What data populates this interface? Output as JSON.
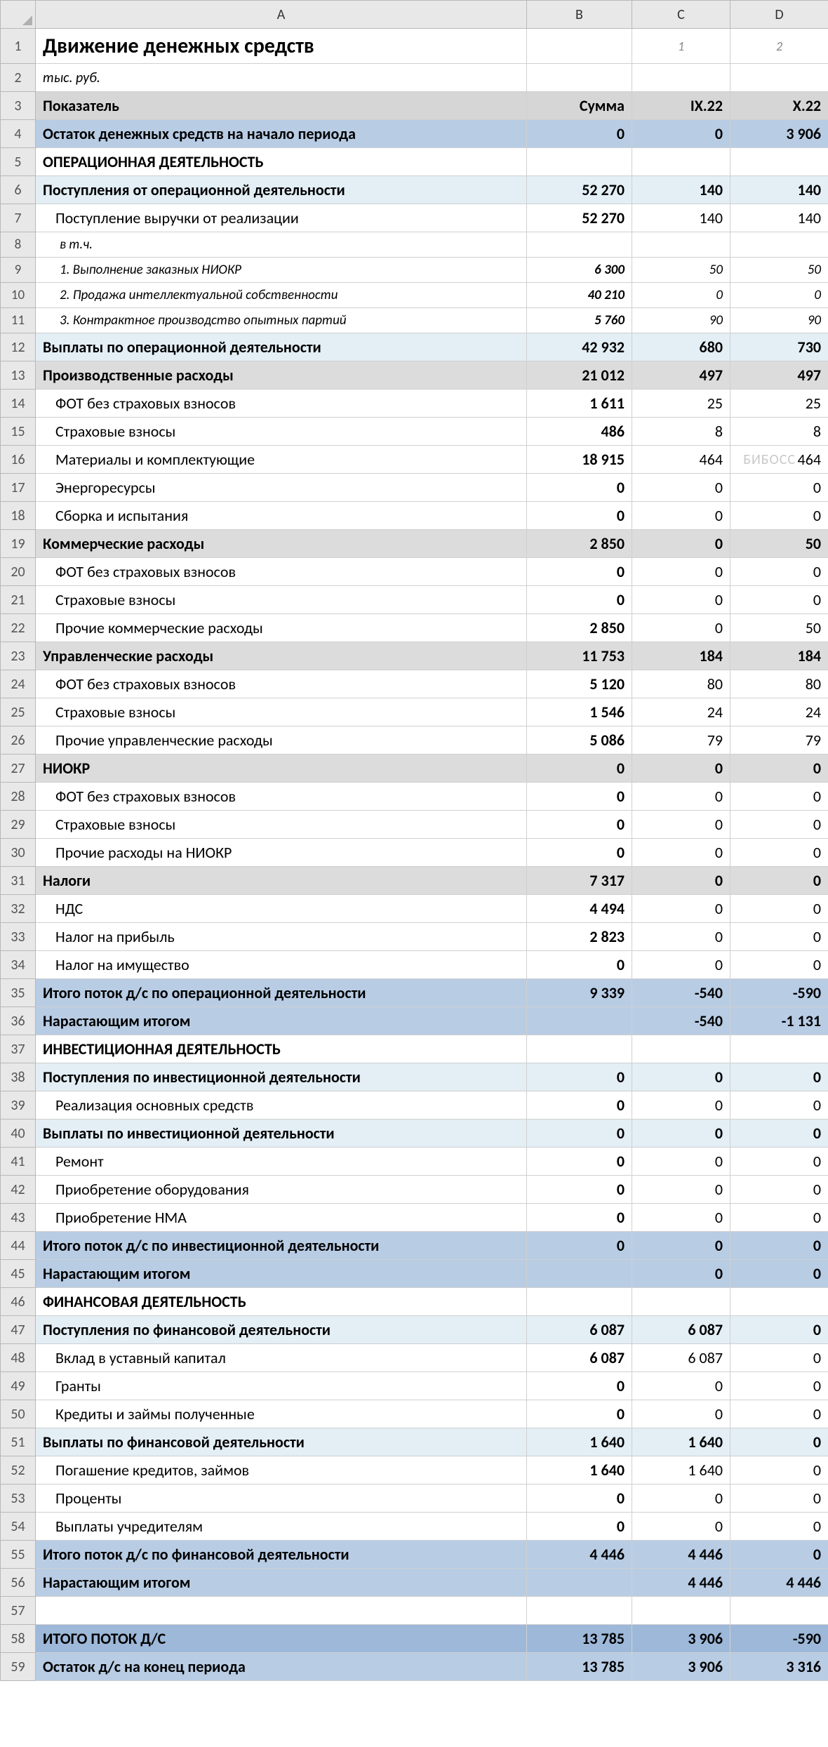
{
  "columns": {
    "A": "A",
    "B": "B",
    "C": "C",
    "D": "D"
  },
  "row1": {
    "title": "Движение денежных средств",
    "c": "1",
    "d": "2"
  },
  "row2": {
    "subtitle": "тыс. руб."
  },
  "hdr": {
    "indicator": "Показатель",
    "sum": "Сумма",
    "p1": "IX.22",
    "p2": "X.22"
  },
  "watermark": "БИБОСС",
  "rows": [
    {
      "n": 4,
      "style": "bg-medblue bold",
      "a": "Остаток денежных средств на начало периода",
      "b": "0",
      "c": "0",
      "d": "3 906"
    },
    {
      "n": 5,
      "style": "bold",
      "a": "ОПЕРАЦИОННАЯ ДЕЯТЕЛЬНОСТЬ",
      "b": "",
      "c": "",
      "d": ""
    },
    {
      "n": 6,
      "style": "bg-lightblue bold",
      "a": "Поступления от операционной деятельности",
      "b": "52 270",
      "c": "140",
      "d": "140"
    },
    {
      "n": 7,
      "style": "",
      "a_class": "indent1",
      "a": "Поступление выручки от реализации",
      "b": "52 270",
      "c": "140",
      "d": "140",
      "b_class": "bold"
    },
    {
      "n": 8,
      "style": "small-row",
      "a_class": "indent-it small-italic",
      "a": "в т.ч.",
      "b": "",
      "c": "",
      "d": ""
    },
    {
      "n": 9,
      "style": "small-row",
      "a_class": "indent-it small-italic",
      "a": "1. Выполнение заказных НИОКР",
      "b": "6 300",
      "c": "50",
      "d": "50",
      "num_class": "small-italic",
      "b_class": "bold"
    },
    {
      "n": 10,
      "style": "small-row",
      "a_class": "indent-it small-italic",
      "a": "2. Продажа интеллектуальной собственности",
      "b": "40 210",
      "c": "0",
      "d": "0",
      "num_class": "small-italic",
      "b_class": "bold"
    },
    {
      "n": 11,
      "style": "small-row",
      "a_class": "indent-it small-italic",
      "a": "3. Контрактное производство опытных партий",
      "b": "5 760",
      "c": "90",
      "d": "90",
      "num_class": "small-italic",
      "b_class": "bold"
    },
    {
      "n": 12,
      "style": "bg-lightblue bold",
      "a": "Выплаты по операционной деятельности",
      "b": "42 932",
      "c": "680",
      "d": "730"
    },
    {
      "n": 13,
      "style": "bg-gray bold",
      "a": "Производственные расходы",
      "b": "21 012",
      "c": "497",
      "d": "497"
    },
    {
      "n": 14,
      "style": "",
      "a_class": "indent1",
      "a": "ФОТ без страховых взносов",
      "b": "1 611",
      "c": "25",
      "d": "25",
      "b_class": "bold"
    },
    {
      "n": 15,
      "style": "",
      "a_class": "indent1",
      "a": "Страховые взносы",
      "b": "486",
      "c": "8",
      "d": "8",
      "b_class": "bold"
    },
    {
      "n": 16,
      "style": "",
      "a_class": "indent1",
      "a": "Материалы и комплектующие",
      "b": "18 915",
      "c": "464",
      "d": "464",
      "b_class": "bold",
      "wm_d": true
    },
    {
      "n": 17,
      "style": "",
      "a_class": "indent1",
      "a": "Энергоресурсы",
      "b": "0",
      "c": "0",
      "d": "0",
      "b_class": "bold"
    },
    {
      "n": 18,
      "style": "",
      "a_class": "indent1",
      "a": "Сборка и испытания",
      "b": "0",
      "c": "0",
      "d": "0",
      "b_class": "bold"
    },
    {
      "n": 19,
      "style": "bg-gray bold",
      "a": "Коммерческие расходы",
      "b": "2 850",
      "c": "0",
      "d": "50"
    },
    {
      "n": 20,
      "style": "",
      "a_class": "indent1",
      "a": "ФОТ без страховых взносов",
      "b": "0",
      "c": "0",
      "d": "0",
      "b_class": "bold"
    },
    {
      "n": 21,
      "style": "",
      "a_class": "indent1",
      "a": "Страховые взносы",
      "b": "0",
      "c": "0",
      "d": "0",
      "b_class": "bold"
    },
    {
      "n": 22,
      "style": "",
      "a_class": "indent1",
      "a": "Прочие коммерческие расходы",
      "b": "2 850",
      "c": "0",
      "d": "50",
      "b_class": "bold"
    },
    {
      "n": 23,
      "style": "bg-gray bold",
      "a": "Управленческие расходы",
      "b": "11 753",
      "c": "184",
      "d": "184"
    },
    {
      "n": 24,
      "style": "",
      "a_class": "indent1",
      "a": "ФОТ без страховых взносов",
      "b": "5 120",
      "c": "80",
      "d": "80",
      "b_class": "bold"
    },
    {
      "n": 25,
      "style": "",
      "a_class": "indent1",
      "a": "Страховые взносы",
      "b": "1 546",
      "c": "24",
      "d": "24",
      "b_class": "bold"
    },
    {
      "n": 26,
      "style": "",
      "a_class": "indent1",
      "a": "Прочие управленческие расходы",
      "b": "5 086",
      "c": "79",
      "d": "79",
      "b_class": "bold"
    },
    {
      "n": 27,
      "style": "bg-gray bold",
      "a": "НИОКР",
      "b": "0",
      "c": "0",
      "d": "0"
    },
    {
      "n": 28,
      "style": "",
      "a_class": "indent1",
      "a": "ФОТ без страховых взносов",
      "b": "0",
      "c": "0",
      "d": "0",
      "b_class": "bold"
    },
    {
      "n": 29,
      "style": "",
      "a_class": "indent1",
      "a": "Страховые взносы",
      "b": "0",
      "c": "0",
      "d": "0",
      "b_class": "bold"
    },
    {
      "n": 30,
      "style": "",
      "a_class": "indent1",
      "a": "Прочие расходы на НИОКР",
      "b": "0",
      "c": "0",
      "d": "0",
      "b_class": "bold"
    },
    {
      "n": 31,
      "style": "bg-gray bold",
      "a": "Налоги",
      "b": "7 317",
      "c": "0",
      "d": "0"
    },
    {
      "n": 32,
      "style": "",
      "a_class": "indent1",
      "a": "НДС",
      "b": "4 494",
      "c": "0",
      "d": "0",
      "b_class": "bold"
    },
    {
      "n": 33,
      "style": "",
      "a_class": "indent1",
      "a": "Налог на прибыль",
      "b": "2 823",
      "c": "0",
      "d": "0",
      "b_class": "bold"
    },
    {
      "n": 34,
      "style": "",
      "a_class": "indent1",
      "a": "Налог на имущество",
      "b": "0",
      "c": "0",
      "d": "0",
      "b_class": "bold"
    },
    {
      "n": 35,
      "style": "bg-medblue bold",
      "a": "Итого поток д/с по операционной деятельности",
      "b": "9 339",
      "c": "-540",
      "d": "-590"
    },
    {
      "n": 36,
      "style": "bg-medblue bold",
      "a": "Нарастающим итогом",
      "b": "",
      "c": "-540",
      "d": "-1 131"
    },
    {
      "n": 37,
      "style": "bold",
      "a": "ИНВЕСТИЦИОННАЯ ДЕЯТЕЛЬНОСТЬ",
      "b": "",
      "c": "",
      "d": ""
    },
    {
      "n": 38,
      "style": "bg-lightblue bold",
      "a": "Поступления по инвестиционной деятельности",
      "b": "0",
      "c": "0",
      "d": "0"
    },
    {
      "n": 39,
      "style": "",
      "a_class": "indent1",
      "a": "Реализация основных средств",
      "b": "0",
      "c": "0",
      "d": "0",
      "b_class": "bold"
    },
    {
      "n": 40,
      "style": "bg-lightblue bold",
      "a": "Выплаты по инвестиционной деятельности",
      "b": "0",
      "c": "0",
      "d": "0"
    },
    {
      "n": 41,
      "style": "",
      "a_class": "indent1",
      "a": "Ремонт",
      "b": "0",
      "c": "0",
      "d": "0",
      "b_class": "bold"
    },
    {
      "n": 42,
      "style": "",
      "a_class": "indent1",
      "a": "Приобретение оборудования",
      "b": "0",
      "c": "0",
      "d": "0",
      "b_class": "bold"
    },
    {
      "n": 43,
      "style": "",
      "a_class": "indent1",
      "a": "Приобретение НМА",
      "b": "0",
      "c": "0",
      "d": "0",
      "b_class": "bold"
    },
    {
      "n": 44,
      "style": "bg-medblue bold",
      "a": "Итого поток д/с по инвестиционной деятельности",
      "b": "0",
      "c": "0",
      "d": "0",
      "truncate_a": true
    },
    {
      "n": 45,
      "style": "bg-medblue bold",
      "a": "Нарастающим итогом",
      "b": "",
      "c": "0",
      "d": "0"
    },
    {
      "n": 46,
      "style": "bold",
      "a": "ФИНАНСОВАЯ ДЕЯТЕЛЬНОСТЬ",
      "b": "",
      "c": "",
      "d": ""
    },
    {
      "n": 47,
      "style": "bg-lightblue bold",
      "a": "Поступления по финансовой деятельности",
      "b": "6 087",
      "c": "6 087",
      "d": "0"
    },
    {
      "n": 48,
      "style": "",
      "a_class": "indent1",
      "a": "Вклад в уставный капитал",
      "b": "6 087",
      "c": "6 087",
      "d": "0",
      "b_class": "bold"
    },
    {
      "n": 49,
      "style": "",
      "a_class": "indent1",
      "a": "Гранты",
      "b": "0",
      "c": "0",
      "d": "0",
      "b_class": "bold"
    },
    {
      "n": 50,
      "style": "",
      "a_class": "indent1",
      "a": "Кредиты и займы полученные",
      "b": "0",
      "c": "0",
      "d": "0",
      "b_class": "bold"
    },
    {
      "n": 51,
      "style": "bg-lightblue bold",
      "a": "Выплаты по финансовой деятельности",
      "b": "1 640",
      "c": "1 640",
      "d": "0"
    },
    {
      "n": 52,
      "style": "",
      "a_class": "indent1",
      "a": "Погашение кредитов, займов",
      "b": "1 640",
      "c": "1 640",
      "d": "0",
      "b_class": "bold"
    },
    {
      "n": 53,
      "style": "",
      "a_class": "indent1",
      "a": "Проценты",
      "b": "0",
      "c": "0",
      "d": "0",
      "b_class": "bold"
    },
    {
      "n": 54,
      "style": "",
      "a_class": "indent1",
      "a": "Выплаты учредителям",
      "b": "0",
      "c": "0",
      "d": "0",
      "b_class": "bold"
    },
    {
      "n": 55,
      "style": "bg-medblue bold",
      "a": "Итого поток д/с по финансовой деятельности",
      "b": "4 446",
      "c": "4 446",
      "d": "0"
    },
    {
      "n": 56,
      "style": "bg-medblue bold",
      "a": "Нарастающим итогом",
      "b": "",
      "c": "4 446",
      "d": "4 446"
    },
    {
      "n": 57,
      "style": "",
      "a": "",
      "b": "",
      "c": "",
      "d": ""
    },
    {
      "n": 58,
      "style": "bg-steelblue bold",
      "a": "ИТОГО ПОТОК Д/С",
      "b": "13 785",
      "c": "3 906",
      "d": "-590"
    },
    {
      "n": 59,
      "style": "bg-medblue bold",
      "a": "Остаток д/с на конец периода",
      "b": "13 785",
      "c": "3 906",
      "d": "3 316"
    }
  ]
}
